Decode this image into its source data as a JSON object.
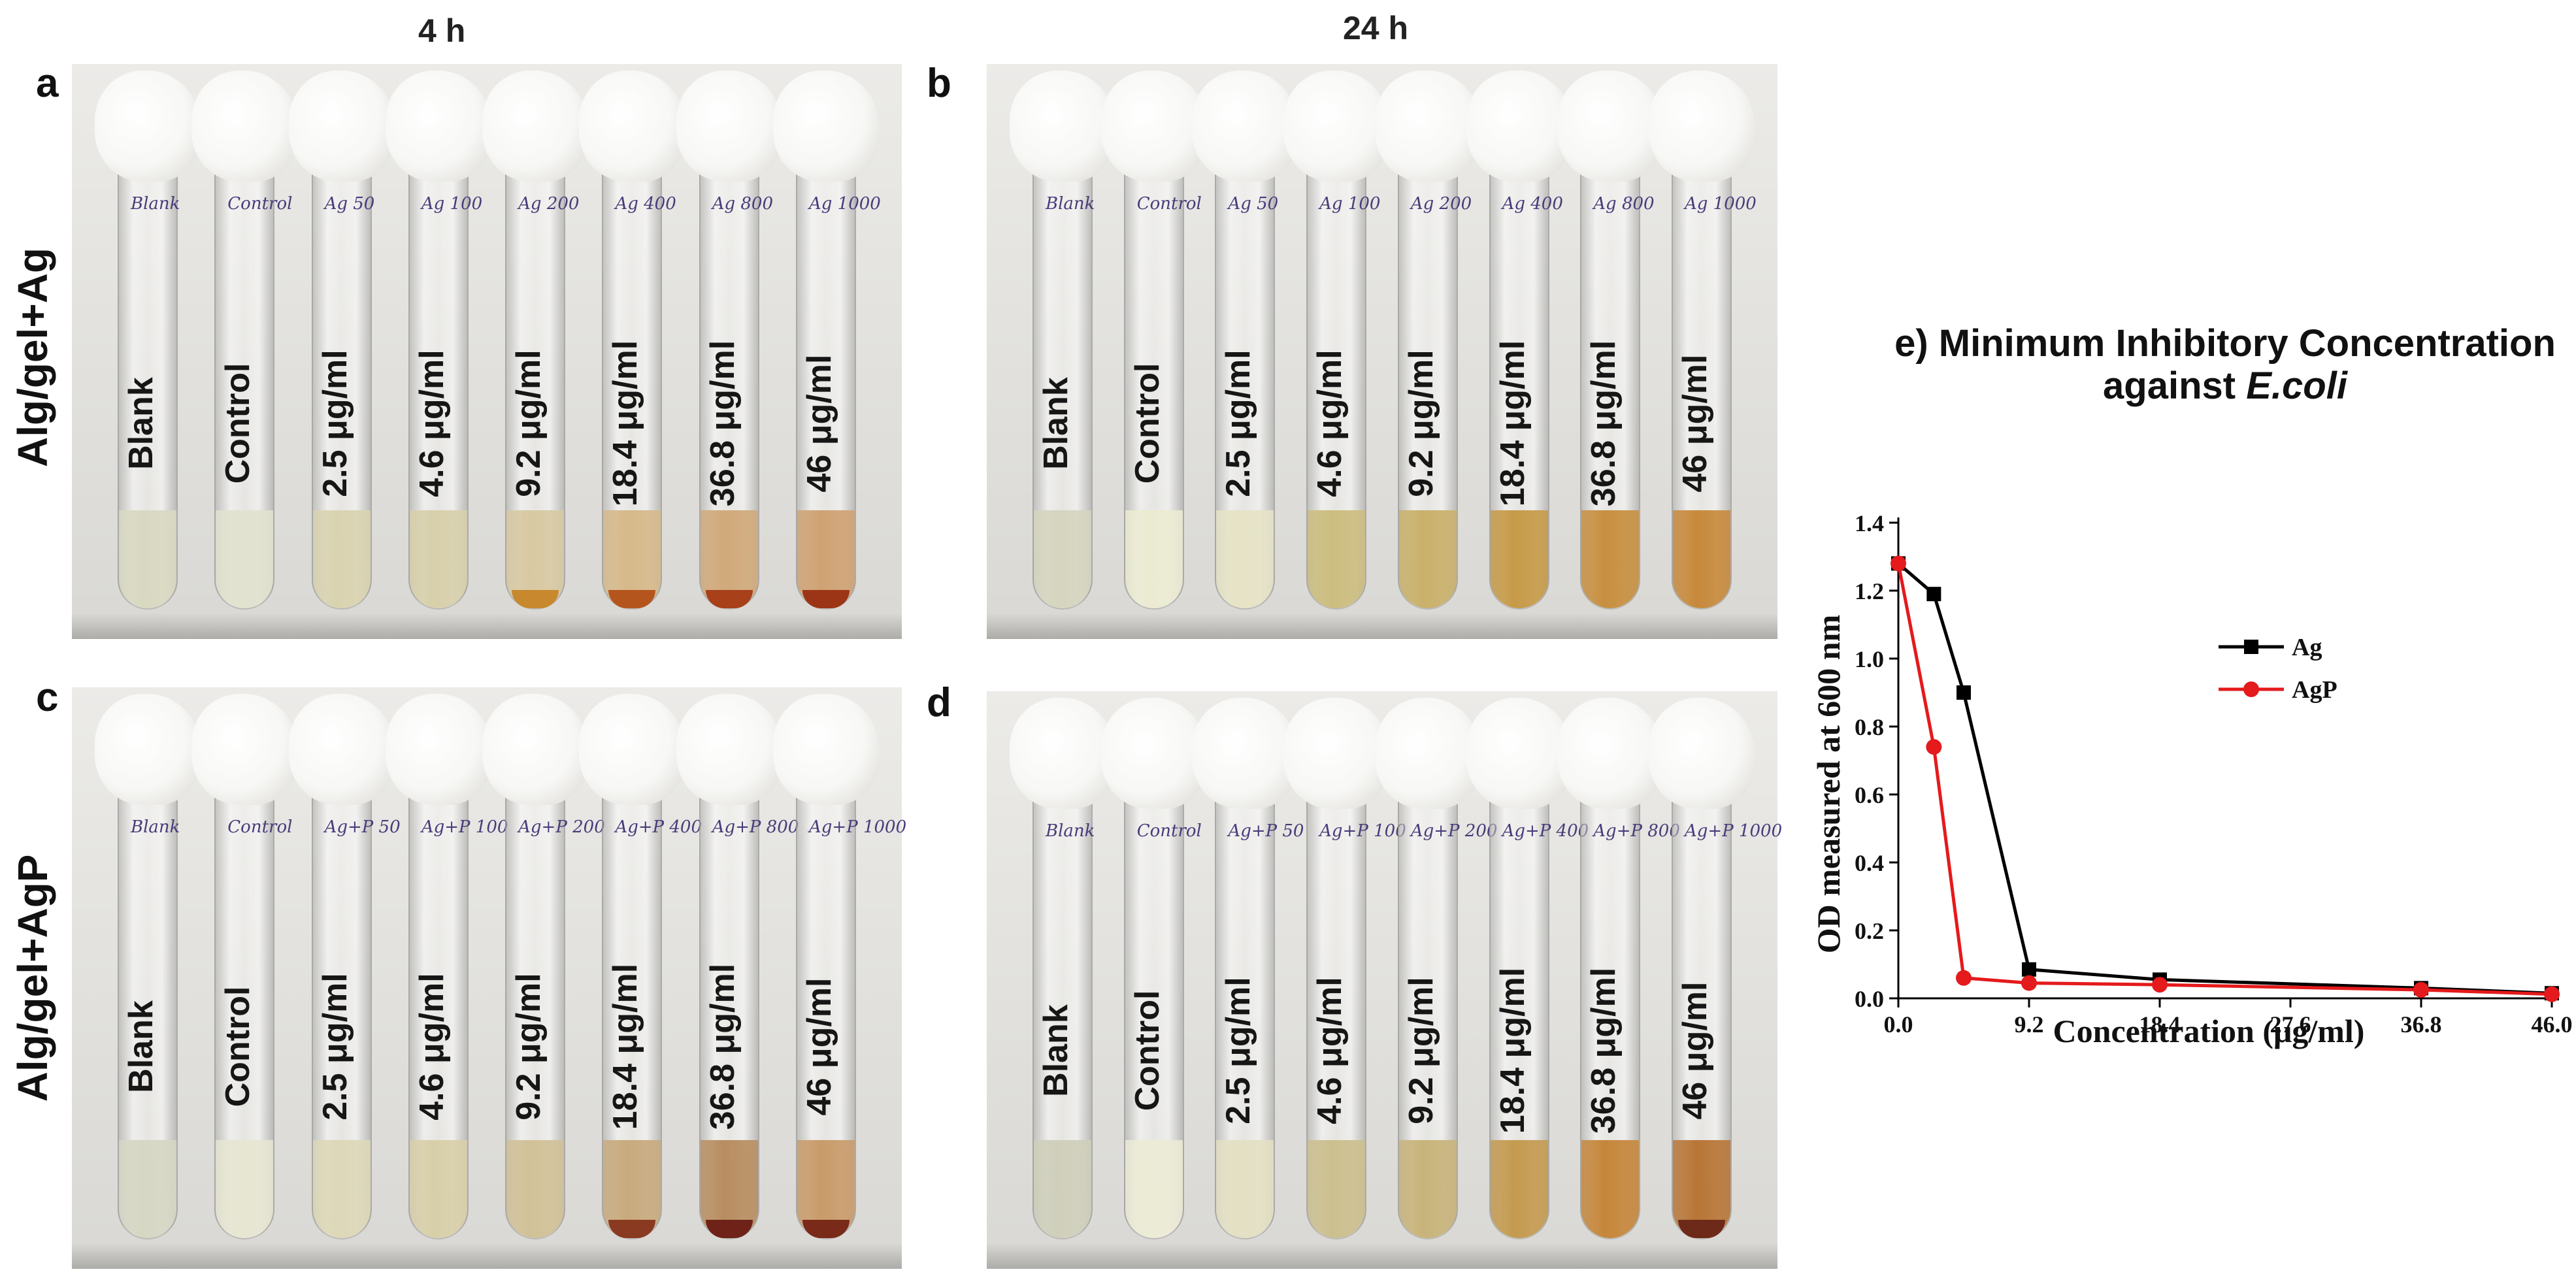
{
  "columns": {
    "left": "4 h",
    "right": "24 h"
  },
  "rows": {
    "top": "Alg/gel+Ag",
    "bottom": "Alg/gel+AgP"
  },
  "panels": [
    {
      "letter": "a",
      "tubes": [
        {
          "label": "Blank",
          "ink": "Blank",
          "liquid": "#d9d9c2",
          "sediment": ""
        },
        {
          "label": "Control",
          "ink": "Control",
          "liquid": "#e2e2cf",
          "sediment": ""
        },
        {
          "label": "2.5 μg/ml",
          "ink": "Ag 50",
          "liquid": "#d9d3b0",
          "sediment": ""
        },
        {
          "label": "4.6 μg/ml",
          "ink": "Ag 100",
          "liquid": "#d8d0ab",
          "sediment": ""
        },
        {
          "label": "9.2 μg/ml",
          "ink": "Ag 200",
          "liquid": "#d8c9a2",
          "sediment": "#c8892e"
        },
        {
          "label": "18.4 μg/ml",
          "ink": "Ag 400",
          "liquid": "#d6b98a",
          "sediment": "#b5551e"
        },
        {
          "label": "36.8 μg/ml",
          "ink": "Ag 800",
          "liquid": "#d1a97a",
          "sediment": "#a8401a"
        },
        {
          "label": "46 μg/ml",
          "ink": "Ag 1000",
          "liquid": "#cfa272",
          "sediment": "#9c3516"
        }
      ]
    },
    {
      "letter": "b",
      "tubes": [
        {
          "label": "Blank",
          "ink": "Blank",
          "liquid": "#d6d5bf",
          "sediment": ""
        },
        {
          "label": "Control",
          "ink": "Control",
          "liquid": "#ecebd2",
          "sediment": ""
        },
        {
          "label": "2.5 μg/ml",
          "ink": "Ag 50",
          "liquid": "#e6e3c6",
          "sediment": ""
        },
        {
          "label": "4.6 μg/ml",
          "ink": "Ag 100",
          "liquid": "#ccbd7e",
          "sediment": ""
        },
        {
          "label": "9.2 μg/ml",
          "ink": "Ag 200",
          "liquid": "#c9b06a",
          "sediment": ""
        },
        {
          "label": "18.4 μg/ml",
          "ink": "Ag 400",
          "liquid": "#c69a48",
          "sediment": ""
        },
        {
          "label": "36.8 μg/ml",
          "ink": "Ag 800",
          "liquid": "#c78f3f",
          "sediment": ""
        },
        {
          "label": "46 μg/ml",
          "ink": "Ag 1000",
          "liquid": "#c7893b",
          "sediment": ""
        }
      ]
    },
    {
      "letter": "c",
      "tubes": [
        {
          "label": "Blank",
          "ink": "Blank",
          "liquid": "#d6d7c3",
          "sediment": ""
        },
        {
          "label": "Control",
          "ink": "Control",
          "liquid": "#e7e6d2",
          "sediment": ""
        },
        {
          "label": "2.5 μg/ml",
          "ink": "Ag+P 50",
          "liquid": "#ddd8b8",
          "sediment": ""
        },
        {
          "label": "4.6 μg/ml",
          "ink": "Ag+P 100",
          "liquid": "#d8cfa9",
          "sediment": ""
        },
        {
          "label": "9.2 μg/ml",
          "ink": "Ag+P 200",
          "liquid": "#d1c197",
          "sediment": ""
        },
        {
          "label": "18.4 μg/ml",
          "ink": "Ag+P 400",
          "liquid": "#c8aa7d",
          "sediment": "#8a3a20"
        },
        {
          "label": "36.8 μg/ml",
          "ink": "Ag+P 800",
          "liquid": "#b88d60",
          "sediment": "#6e2218"
        },
        {
          "label": "46 μg/ml",
          "ink": "Ag+P 1000",
          "liquid": "#c99b6a",
          "sediment": "#7a2a18"
        }
      ]
    },
    {
      "letter": "d",
      "tubes": [
        {
          "label": "Blank",
          "ink": "Blank",
          "liquid": "#cfcfbb",
          "sediment": ""
        },
        {
          "label": "Control",
          "ink": "Control",
          "liquid": "#ecebd6",
          "sediment": ""
        },
        {
          "label": "2.5 μg/ml",
          "ink": "Ag+P 50",
          "liquid": "#e4e0c3",
          "sediment": ""
        },
        {
          "label": "4.6 μg/ml",
          "ink": "Ag+P 100",
          "liquid": "#ccbf8e",
          "sediment": ""
        },
        {
          "label": "9.2 μg/ml",
          "ink": "Ag+P 200",
          "liquid": "#c8b37a",
          "sediment": ""
        },
        {
          "label": "18.4 μg/ml",
          "ink": "Ag+P 400",
          "liquid": "#c49a4f",
          "sediment": ""
        },
        {
          "label": "36.8 μg/ml",
          "ink": "Ag+P 800",
          "liquid": "#c5863a",
          "sediment": ""
        },
        {
          "label": "46 μg/ml",
          "ink": "Ag+P 1000",
          "liquid": "#b87536",
          "sediment": "#6e2a18"
        }
      ]
    }
  ],
  "chart_data": {
    "type": "line",
    "panel_letter": "e)",
    "title_line1": "Minimum Inhibitory Concentration",
    "title_line2_prefix": "against ",
    "title_line2_italic": "E.coli",
    "xlabel": "Concentration (μg/ml)",
    "ylabel": "OD measured at 600 nm",
    "xlim": [
      0,
      46
    ],
    "ylim": [
      0,
      1.4
    ],
    "xticks": [
      0.0,
      9.2,
      18.4,
      27.6,
      36.8,
      46.0
    ],
    "xtick_labels": [
      "0.0",
      "9.2",
      "18.4",
      "27.6",
      "36.8",
      "46.0"
    ],
    "yticks": [
      0.0,
      0.2,
      0.4,
      0.6,
      0.8,
      1.0,
      1.2,
      1.4
    ],
    "ytick_labels": [
      "0.0",
      "0.2",
      "0.4",
      "0.6",
      "0.8",
      "1.0",
      "1.2",
      "1.4"
    ],
    "legend_position": "center-right",
    "series": [
      {
        "name": "Ag",
        "color": "#000000",
        "marker": "square",
        "x": [
          0,
          2.5,
          4.6,
          9.2,
          18.4,
          36.8,
          46
        ],
        "y": [
          1.28,
          1.19,
          0.9,
          0.085,
          0.055,
          0.03,
          0.015
        ]
      },
      {
        "name": "AgP",
        "color": "#e41a1c",
        "marker": "circle",
        "x": [
          0,
          2.5,
          4.6,
          9.2,
          18.4,
          36.8,
          46
        ],
        "y": [
          1.28,
          0.74,
          0.06,
          0.045,
          0.04,
          0.025,
          0.012
        ]
      }
    ]
  }
}
